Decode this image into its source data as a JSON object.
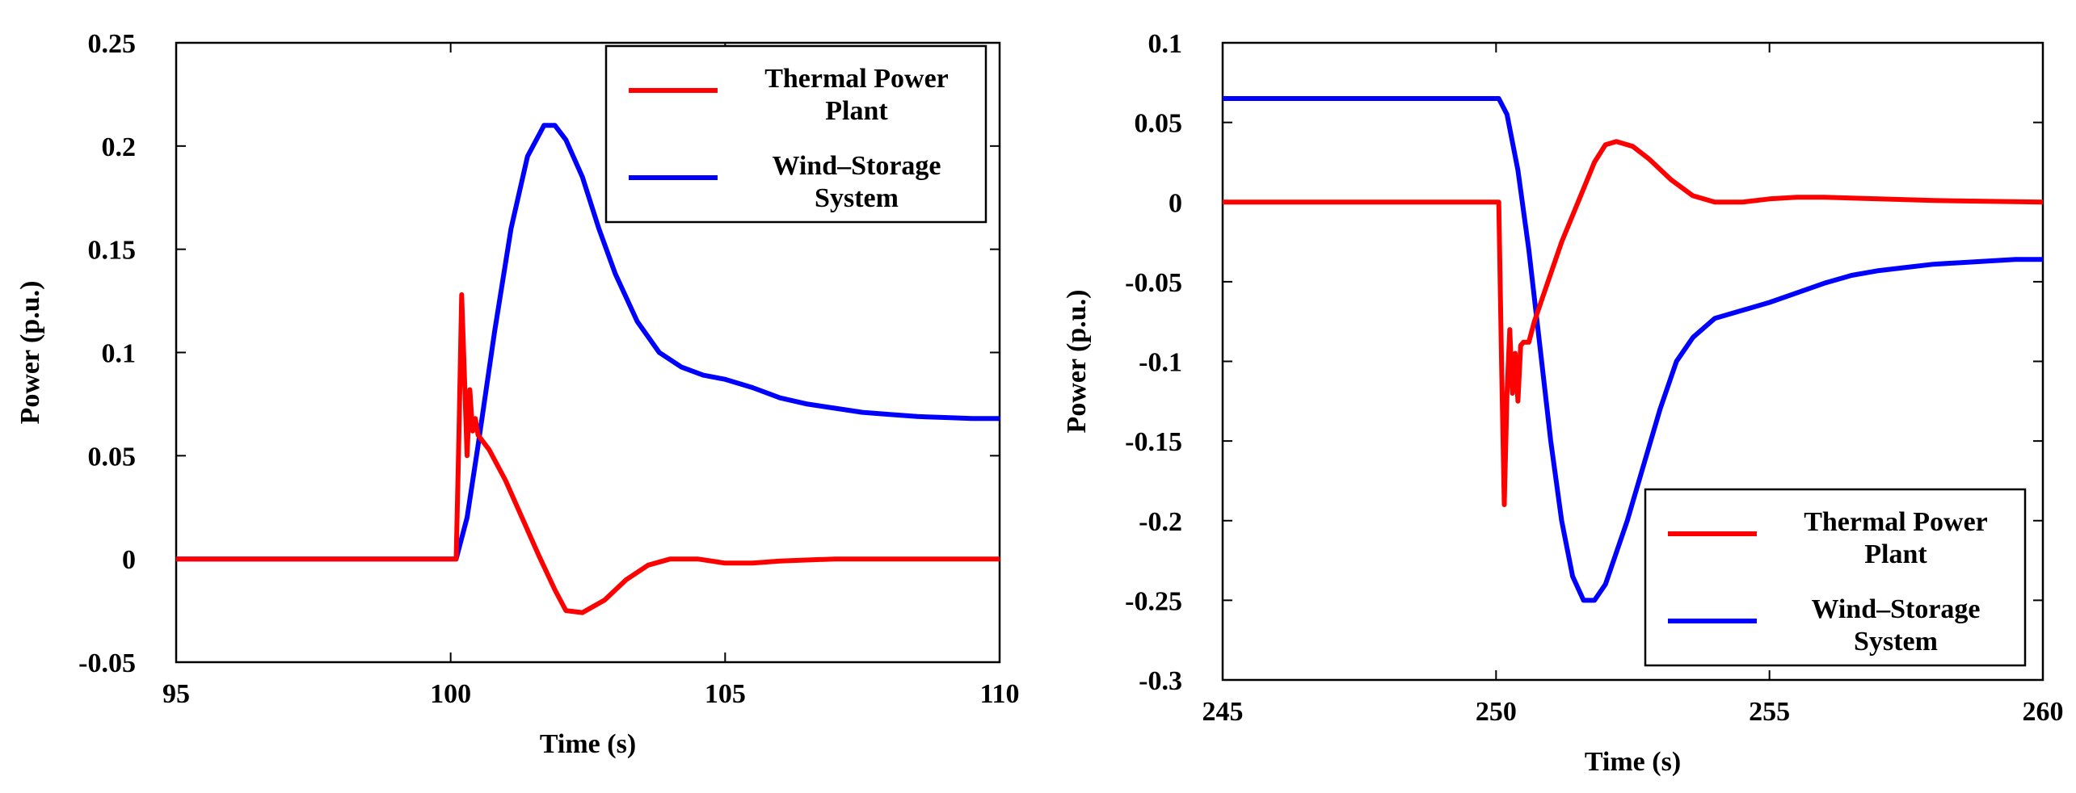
{
  "chart_data": [
    {
      "type": "line",
      "xlabel": "Time (s)",
      "ylabel": "Power (p.u.)",
      "xlim": [
        95,
        110
      ],
      "ylim": [
        -0.05,
        0.25
      ],
      "xticks": [
        95,
        100,
        105,
        110
      ],
      "xtick_labels": [
        "95",
        "100",
        "105",
        "110"
      ],
      "yticks": [
        -0.05,
        0,
        0.05,
        0.1,
        0.15,
        0.2,
        0.25
      ],
      "ytick_labels": [
        "-0.05",
        "0",
        "0.05",
        "0.1",
        "0.15",
        "0.2",
        "0.25"
      ],
      "legend_position": "top-right",
      "series": [
        {
          "name": "Thermal Power Plant",
          "legend_lines": [
            "Thermal Power",
            "Plant"
          ],
          "color": "#ff0000",
          "x": [
            95,
            100.1,
            100.15,
            100.2,
            100.25,
            100.3,
            100.35,
            100.4,
            100.45,
            100.5,
            100.7,
            101.0,
            101.3,
            101.6,
            101.9,
            102.1,
            102.4,
            102.8,
            103.2,
            103.6,
            104.0,
            104.5,
            105.0,
            105.5,
            106.0,
            107.0,
            108.0,
            110
          ],
          "values": [
            0,
            0,
            0.06,
            0.128,
            0.09,
            0.05,
            0.082,
            0.062,
            0.068,
            0.06,
            0.053,
            0.038,
            0.02,
            0.002,
            -0.015,
            -0.025,
            -0.026,
            -0.02,
            -0.01,
            -0.003,
            0.0,
            0.0,
            -0.002,
            -0.002,
            -0.001,
            0,
            0,
            0
          ]
        },
        {
          "name": "Wind–Storage System",
          "legend_lines": [
            "Wind–Storage",
            "System"
          ],
          "color": "#0000ff",
          "x": [
            95,
            100.1,
            100.3,
            100.5,
            100.8,
            101.1,
            101.4,
            101.7,
            101.9,
            102.1,
            102.4,
            102.7,
            103.0,
            103.4,
            103.8,
            104.2,
            104.6,
            105.0,
            105.5,
            106.0,
            106.5,
            107.0,
            107.5,
            108.0,
            108.5,
            109.0,
            109.5,
            110
          ],
          "values": [
            0,
            0,
            0.02,
            0.055,
            0.11,
            0.16,
            0.195,
            0.21,
            0.21,
            0.203,
            0.185,
            0.16,
            0.138,
            0.115,
            0.1,
            0.093,
            0.089,
            0.087,
            0.083,
            0.078,
            0.075,
            0.073,
            0.071,
            0.07,
            0.069,
            0.0685,
            0.068,
            0.068
          ]
        }
      ]
    },
    {
      "type": "line",
      "xlabel": "Time (s)",
      "ylabel": "Power (p.u.)",
      "xlim": [
        245,
        260
      ],
      "ylim": [
        -0.3,
        0.1
      ],
      "xticks": [
        245,
        250,
        255,
        260
      ],
      "xtick_labels": [
        "245",
        "250",
        "255",
        "260"
      ],
      "yticks": [
        -0.3,
        -0.25,
        -0.2,
        -0.15,
        -0.1,
        -0.05,
        0,
        0.05,
        0.1
      ],
      "ytick_labels": [
        "-0.3",
        "-0.25",
        "-0.2",
        "-0.15",
        "-0.1",
        "-0.05",
        "0",
        "0.05",
        "0.1"
      ],
      "legend_position": "bottom-right",
      "series": [
        {
          "name": "Thermal Power Plant",
          "legend_lines": [
            "Thermal Power",
            "Plant"
          ],
          "color": "#ff0000",
          "x": [
            245,
            250.05,
            250.1,
            250.15,
            250.2,
            250.25,
            250.3,
            250.35,
            250.4,
            250.45,
            250.5,
            250.6,
            250.7,
            250.9,
            251.2,
            251.5,
            251.8,
            252.0,
            252.2,
            252.5,
            252.8,
            253.2,
            253.6,
            254.0,
            254.5,
            255.0,
            255.5,
            256.0,
            257.0,
            258.0,
            260
          ],
          "values": [
            0,
            0,
            -0.1,
            -0.19,
            -0.12,
            -0.08,
            -0.12,
            -0.095,
            -0.125,
            -0.09,
            -0.088,
            -0.088,
            -0.075,
            -0.055,
            -0.025,
            0.0,
            0.025,
            0.036,
            0.038,
            0.035,
            0.027,
            0.014,
            0.004,
            0.0,
            0.0,
            0.002,
            0.003,
            0.003,
            0.002,
            0.001,
            0.0
          ]
        },
        {
          "name": "Wind–Storage System",
          "legend_lines": [
            "Wind–Storage",
            "System"
          ],
          "color": "#0000ff",
          "x": [
            245,
            250.05,
            250.2,
            250.4,
            250.6,
            250.8,
            251.0,
            251.2,
            251.4,
            251.6,
            251.8,
            252.0,
            252.2,
            252.4,
            252.7,
            253.0,
            253.3,
            253.6,
            254.0,
            254.5,
            255.0,
            255.5,
            256.0,
            256.5,
            257.0,
            257.5,
            258.0,
            258.5,
            259.0,
            259.5,
            260
          ],
          "values": [
            0.065,
            0.065,
            0.055,
            0.02,
            -0.03,
            -0.09,
            -0.15,
            -0.2,
            -0.235,
            -0.25,
            -0.25,
            -0.24,
            -0.22,
            -0.2,
            -0.165,
            -0.13,
            -0.1,
            -0.085,
            -0.073,
            -0.068,
            -0.063,
            -0.057,
            -0.051,
            -0.046,
            -0.043,
            -0.041,
            -0.039,
            -0.038,
            -0.037,
            -0.036,
            -0.036
          ]
        }
      ]
    }
  ]
}
